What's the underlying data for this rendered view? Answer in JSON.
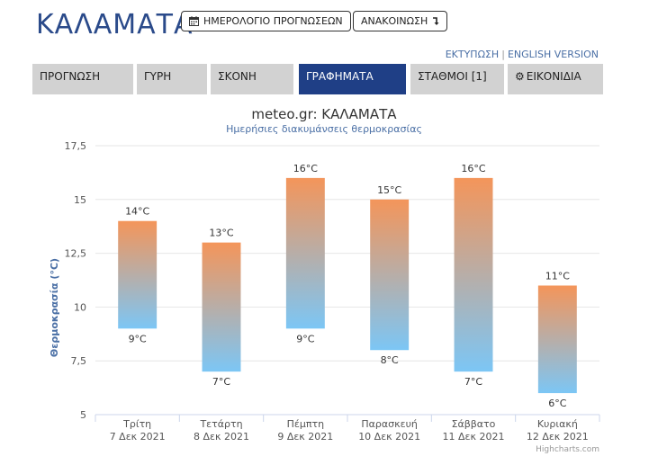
{
  "header": {
    "city": "ΚΑΛΑΜΑΤΑ",
    "calendar_button": "ΗΜΕΡΟΛΟΓΙΟ ΠΡΟΓΝΩΣΕΩΝ",
    "announcement_button": "ΑΝΑΚΟΙΝΩΣΗ",
    "print_link": "ΕΚΤΥΠΩΣΗ",
    "link_separator": "|",
    "english_link": "ENGLISH VERSION"
  },
  "tabs": [
    {
      "label": "ΠΡΟΓΝΩΣΗ",
      "active": false
    },
    {
      "label": "ΓΥΡΗ",
      "active": false
    },
    {
      "label": "ΣΚΟΝΗ",
      "active": false
    },
    {
      "label": "ΓΡΑΦΗΜΑΤΑ",
      "active": true
    },
    {
      "label": "ΣΤΑΘΜΟΙ [1]",
      "active": false
    },
    {
      "label": "ΕΙΚΟΝΙΔΙΑ",
      "active": false,
      "icon": "gear-icon"
    }
  ],
  "chart_data": {
    "type": "bar",
    "title": "meteo.gr: ΚΑΛΑΜΑΤΑ",
    "subtitle": "Ημερήσιες διακυμάνσεις θερμοκρασίας",
    "ylabel": "Θερμοκρασία (°C)",
    "ylim": [
      5,
      17.5
    ],
    "yticks": [
      "5",
      "7,5",
      "10",
      "12,5",
      "15",
      "17,5"
    ],
    "ytick_values": [
      5,
      7.5,
      10,
      12.5,
      15,
      17.5
    ],
    "grid": true,
    "categories": [
      {
        "day": "Τρίτη",
        "date": "7 Δεκ 2021"
      },
      {
        "day": "Τετάρτη",
        "date": "8 Δεκ 2021"
      },
      {
        "day": "Πέμπτη",
        "date": "9 Δεκ 2021"
      },
      {
        "day": "Παρασκευή",
        "date": "10 Δεκ 2021"
      },
      {
        "day": "Σάββατο",
        "date": "11 Δεκ 2021"
      },
      {
        "day": "Κυριακή",
        "date": "12 Δεκ 2021"
      }
    ],
    "low": [
      9,
      7,
      9,
      8,
      7,
      6
    ],
    "high": [
      14,
      13,
      16,
      15,
      16,
      11
    ],
    "unit": "°C",
    "colors": {
      "top": "#f4955a",
      "bottom": "#7cc6f5"
    },
    "credit": "Highcharts.com"
  }
}
